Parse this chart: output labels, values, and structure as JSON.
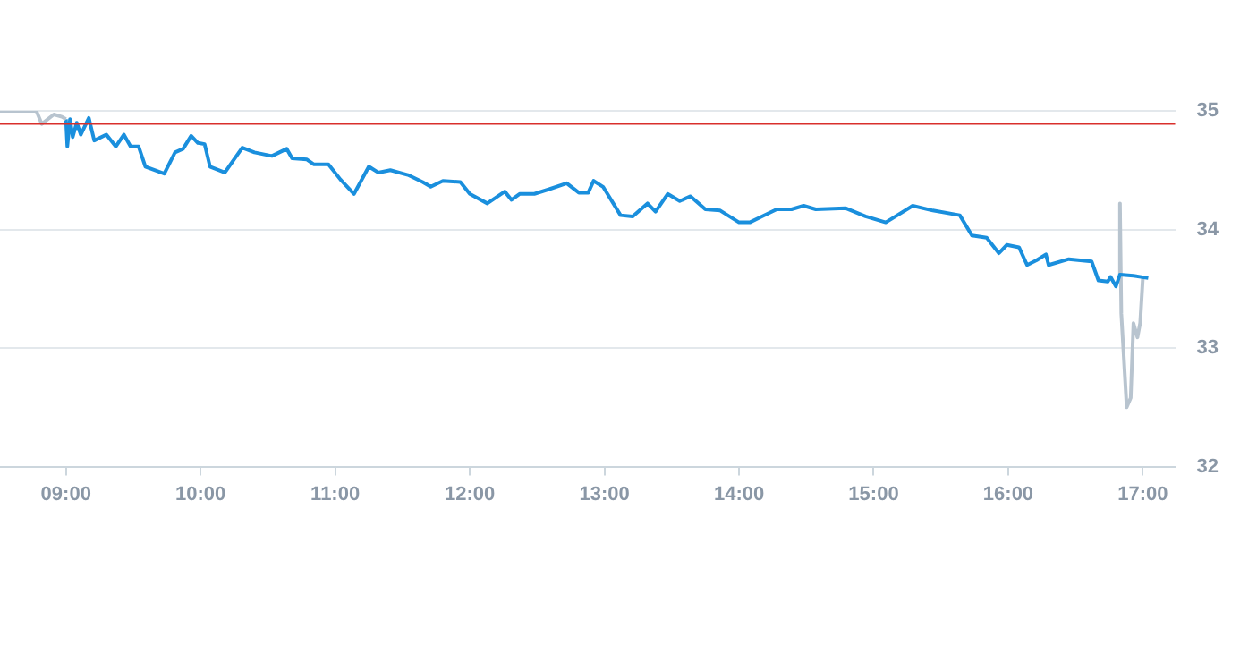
{
  "chart_data": {
    "type": "line",
    "xlim": [
      8.51,
      17.24
    ],
    "xticks": [
      {
        "value": 9,
        "label": "09:00"
      },
      {
        "value": 10,
        "label": "10:00"
      },
      {
        "value": 11,
        "label": "11:00"
      },
      {
        "value": 12,
        "label": "12:00"
      },
      {
        "value": 13,
        "label": "13:00"
      },
      {
        "value": 14,
        "label": "14:00"
      },
      {
        "value": 15,
        "label": "15:00"
      },
      {
        "value": 16,
        "label": "16:00"
      },
      {
        "value": 17,
        "label": "17:00"
      }
    ],
    "ylim": [
      32,
      35
    ],
    "yticks": [
      32,
      33,
      34,
      35
    ],
    "grid": "y",
    "legend": false,
    "ref_lines": [
      {
        "axis": "y",
        "value": 34.89,
        "color": "#d9302c"
      }
    ],
    "series": [
      {
        "color": "#b8c4cf",
        "x": [
          8.51,
          8.78,
          8.82,
          8.91,
          8.97,
          9.0
        ],
        "values": [
          35.0,
          35.0,
          34.89,
          34.97,
          34.95,
          34.93
        ]
      },
      {
        "color": "#1a8fdd",
        "x": [
          9.0,
          9.01,
          9.03,
          9.05,
          9.08,
          9.11,
          9.17,
          9.21,
          9.3,
          9.37,
          9.43,
          9.48,
          9.54,
          9.59,
          9.73,
          9.81,
          9.87,
          9.93,
          9.98,
          10.03,
          10.07,
          10.18,
          10.31,
          10.4,
          10.53,
          10.64,
          10.68,
          10.79,
          10.84,
          10.95,
          11.04,
          11.14,
          11.25,
          11.32,
          11.41,
          11.54,
          11.65,
          11.71,
          11.8,
          11.93,
          12.0,
          12.13,
          12.26,
          12.31,
          12.37,
          12.48,
          12.59,
          12.72,
          12.81,
          12.88,
          12.92,
          12.99,
          13.12,
          13.21,
          13.32,
          13.38,
          13.47,
          13.56,
          13.64,
          13.75,
          13.86,
          14.0,
          14.08,
          14.17,
          14.28,
          14.39,
          14.48,
          14.57,
          14.79,
          14.94,
          15.09,
          15.29,
          15.44,
          15.64,
          15.73,
          15.84,
          15.93,
          15.99,
          16.08,
          16.14,
          16.21,
          16.28,
          16.3,
          16.45,
          16.62,
          16.67,
          16.74,
          16.76,
          16.8,
          16.83,
          16.93,
          17.04
        ],
        "values": [
          34.93,
          34.7,
          34.93,
          34.78,
          34.9,
          34.8,
          34.94,
          34.75,
          34.8,
          34.7,
          34.8,
          34.7,
          34.7,
          34.53,
          34.47,
          34.65,
          34.68,
          34.79,
          34.73,
          34.72,
          34.53,
          34.48,
          34.69,
          34.65,
          34.62,
          34.68,
          34.6,
          34.59,
          34.55,
          34.55,
          34.42,
          34.3,
          34.53,
          34.48,
          34.5,
          34.46,
          34.4,
          34.36,
          34.41,
          34.4,
          34.3,
          34.22,
          34.32,
          34.25,
          34.3,
          34.3,
          34.34,
          34.39,
          34.31,
          34.31,
          34.41,
          34.36,
          34.12,
          34.11,
          34.22,
          34.15,
          34.3,
          34.24,
          34.28,
          34.17,
          34.16,
          34.06,
          34.06,
          34.11,
          34.17,
          34.17,
          34.2,
          34.17,
          34.18,
          34.11,
          34.06,
          34.2,
          34.16,
          34.12,
          33.95,
          33.93,
          33.8,
          33.87,
          33.85,
          33.7,
          33.74,
          33.79,
          33.7,
          33.75,
          33.73,
          33.57,
          33.56,
          33.6,
          33.52,
          33.62,
          33.61,
          33.59
        ]
      },
      {
        "color": "#b8c4cf",
        "x": [
          16.82,
          16.83,
          16.84,
          16.88,
          16.91,
          16.93,
          16.96,
          16.98,
          17.0
        ],
        "values": [
          33.62,
          34.22,
          33.29,
          32.5,
          32.58,
          33.21,
          33.09,
          33.21,
          33.59
        ]
      }
    ]
  }
}
